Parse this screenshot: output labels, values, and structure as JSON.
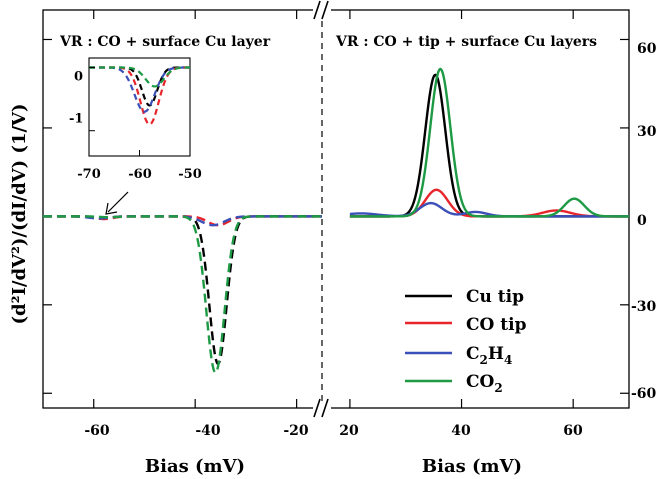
{
  "chart_data": {
    "type": "line",
    "ylabel_text": "(d²I/dV²)/(dI/dV) (1/V)",
    "xlabel_left": "Bias (mV)",
    "xlabel_right": "Bias (mV)",
    "y_ticks_right": [
      "60",
      "30",
      "0",
      "-30",
      "-60"
    ],
    "colors": {
      "Cu tip": "#000000",
      "CO tip": "#e8252a",
      "C2H4": "#3a4fb8",
      "CO2": "#1e9a45"
    },
    "legend_position": "bottom-right",
    "panels": [
      {
        "name": "left",
        "title": "VR : CO + surface Cu layer",
        "line_style": "dashed",
        "xlim": [
          -70,
          -15
        ],
        "ylim": [
          -65,
          70
        ],
        "x_ticks": [
          "-60",
          "-40",
          "-20"
        ],
        "series": [
          {
            "name": "Cu tip",
            "peaks": [
              {
                "center": -35.5,
                "amp": -50,
                "width": 1.7
              },
              {
                "center": -58,
                "amp": -0.6,
                "width": 1.5
              }
            ]
          },
          {
            "name": "CO tip",
            "peaks": [
              {
                "center": -35.5,
                "amp": -3,
                "width": 2.0
              },
              {
                "center": -58,
                "amp": -0.9,
                "width": 1.8
              }
            ]
          },
          {
            "name": "C2H4",
            "peaks": [
              {
                "center": -36.5,
                "amp": -3,
                "width": 2.2
              },
              {
                "center": -59,
                "amp": -0.7,
                "width": 2.0
              }
            ]
          },
          {
            "name": "CO2",
            "peaks": [
              {
                "center": -36,
                "amp": -53,
                "width": 1.8
              },
              {
                "center": -57,
                "amp": -0.3,
                "width": 1.8
              }
            ]
          }
        ]
      },
      {
        "name": "right",
        "title": "VR : CO + tip + surface Cu layers",
        "line_style": "solid",
        "xlim": [
          15,
          70
        ],
        "ylim": [
          -65,
          70
        ],
        "x_ticks": [
          "20",
          "40",
          "60"
        ],
        "series": [
          {
            "name": "Cu tip",
            "peaks": [
              {
                "center": 35.3,
                "amp": 48,
                "width": 1.8
              }
            ]
          },
          {
            "name": "CO tip",
            "peaks": [
              {
                "center": 35.5,
                "amp": 9,
                "width": 2.0
              },
              {
                "center": 57,
                "amp": 2,
                "width": 2.5
              }
            ]
          },
          {
            "name": "C2H4",
            "peaks": [
              {
                "center": 34.5,
                "amp": 4.5,
                "width": 2.0
              },
              {
                "center": 42.5,
                "amp": 1.5,
                "width": 2.0
              },
              {
                "center": 22,
                "amp": 1,
                "width": 3.0
              }
            ]
          },
          {
            "name": "CO2",
            "peaks": [
              {
                "center": 36.2,
                "amp": 50,
                "width": 1.8
              },
              {
                "center": 60.2,
                "amp": 6,
                "width": 1.8
              }
            ]
          }
        ]
      }
    ],
    "inset": {
      "xlim": [
        -70,
        -50
      ],
      "ylim": [
        -1.4,
        0.15
      ],
      "x_ticks": [
        "-70",
        "-60",
        "-50"
      ],
      "y_ticks": [
        "0",
        "-1"
      ],
      "line_style": "dashed"
    }
  },
  "legend": [
    {
      "series": "Cu tip",
      "label": "Cu tip"
    },
    {
      "series": "CO tip",
      "label": "CO tip"
    },
    {
      "series": "C2H4",
      "label_main": "C",
      "sub1": "2",
      "mid": "H",
      "sub2": "4"
    },
    {
      "series": "CO2",
      "label_main": "CO",
      "sub1": "2"
    }
  ]
}
